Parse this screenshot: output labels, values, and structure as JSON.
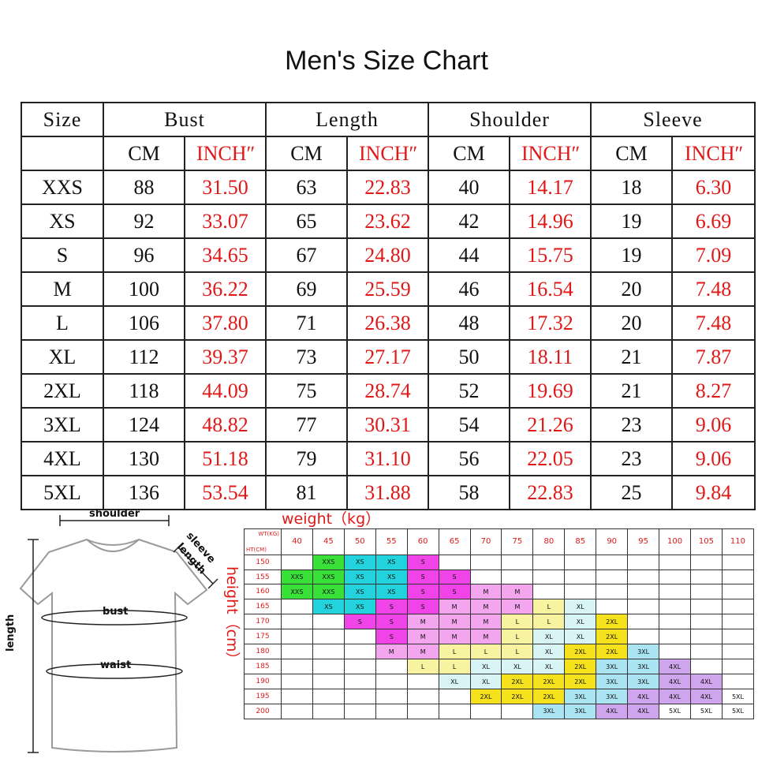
{
  "title": "Men's Size Chart",
  "table": {
    "size_header": "Size",
    "groups": [
      "Bust",
      "Length",
      "Shoulder",
      "Sleeve"
    ],
    "unit_cm": "CM",
    "unit_inch": "INCHʺ",
    "rows": [
      {
        "size": "XXS",
        "vals": [
          "88",
          "31.50",
          "63",
          "22.83",
          "40",
          "14.17",
          "18",
          "6.30"
        ]
      },
      {
        "size": "XS",
        "vals": [
          "92",
          "33.07",
          "65",
          "23.62",
          "42",
          "14.96",
          "19",
          "6.69"
        ]
      },
      {
        "size": "S",
        "vals": [
          "96",
          "34.65",
          "67",
          "24.80",
          "44",
          "15.75",
          "19",
          "7.09"
        ]
      },
      {
        "size": "M",
        "vals": [
          "100",
          "36.22",
          "69",
          "25.59",
          "46",
          "16.54",
          "20",
          "7.48"
        ]
      },
      {
        "size": "L",
        "vals": [
          "106",
          "37.80",
          "71",
          "26.38",
          "48",
          "17.32",
          "20",
          "7.48"
        ]
      },
      {
        "size": "XL",
        "vals": [
          "112",
          "39.37",
          "73",
          "27.17",
          "50",
          "18.11",
          "21",
          "7.87"
        ]
      },
      {
        "size": "2XL",
        "vals": [
          "118",
          "44.09",
          "75",
          "28.74",
          "52",
          "19.69",
          "21",
          "8.27"
        ]
      },
      {
        "size": "3XL",
        "vals": [
          "124",
          "48.82",
          "77",
          "30.31",
          "54",
          "21.26",
          "23",
          "9.06"
        ]
      },
      {
        "size": "4XL",
        "vals": [
          "130",
          "51.18",
          "79",
          "31.10",
          "56",
          "22.05",
          "23",
          "9.06"
        ]
      },
      {
        "size": "5XL",
        "vals": [
          "136",
          "53.54",
          "81",
          "31.88",
          "58",
          "22.83",
          "25",
          "9.84"
        ]
      }
    ]
  },
  "diagram": {
    "shoulder": "shoulder",
    "sleeve": "sleeve",
    "sleeve_length": "length",
    "length": "length",
    "bust": "bust",
    "waist": "waist"
  },
  "grid": {
    "weight_label": "weight（kg）",
    "height_label": "height（cm）",
    "corner_wt": "WT(KG)",
    "corner_ht": "HT(CM)",
    "weights": [
      "40",
      "45",
      "50",
      "55",
      "60",
      "65",
      "70",
      "75",
      "80",
      "85",
      "90",
      "95",
      "100",
      "105",
      "110"
    ],
    "colors": {
      "XXS": "#38e038",
      "XS": "#22d3de",
      "S": "#f044e8",
      "M": "#f3a6ee",
      "L": "#f7f3a0",
      "XL": "#d8f4f4",
      "2XL": "#f5e11c",
      "3XL": "#aae3f2",
      "4XL": "#cfa5ee",
      "5XL": "#ffffff"
    },
    "rows": [
      {
        "height": "150",
        "cells": [
          "",
          "XXS",
          "XS",
          "XS",
          "S",
          "",
          "",
          "",
          "",
          "",
          "",
          "",
          "",
          "",
          ""
        ]
      },
      {
        "height": "155",
        "cells": [
          "XXS",
          "XXS",
          "XS",
          "XS",
          "S",
          "S",
          "",
          "",
          "",
          "",
          "",
          "",
          "",
          "",
          ""
        ]
      },
      {
        "height": "160",
        "cells": [
          "XXS",
          "XXS",
          "XS",
          "XS",
          "S",
          "S",
          "M",
          "M",
          "",
          "",
          "",
          "",
          "",
          "",
          ""
        ]
      },
      {
        "height": "165",
        "cells": [
          "",
          "XS",
          "XS",
          "S",
          "S",
          "M",
          "M",
          "M",
          "L",
          "XL",
          "",
          "",
          "",
          "",
          ""
        ]
      },
      {
        "height": "170",
        "cells": [
          "",
          "",
          "S",
          "S",
          "M",
          "M",
          "M",
          "L",
          "L",
          "XL",
          "2XL",
          "",
          "",
          "",
          ""
        ]
      },
      {
        "height": "175",
        "cells": [
          "",
          "",
          "",
          "S",
          "M",
          "M",
          "M",
          "L",
          "XL",
          "XL",
          "2XL",
          "",
          "",
          "",
          ""
        ]
      },
      {
        "height": "180",
        "cells": [
          "",
          "",
          "",
          "M",
          "M",
          "L",
          "L",
          "L",
          "XL",
          "2XL",
          "2XL",
          "3XL",
          "",
          "",
          ""
        ]
      },
      {
        "height": "185",
        "cells": [
          "",
          "",
          "",
          "",
          "L",
          "L",
          "XL",
          "XL",
          "XL",
          "2XL",
          "3XL",
          "3XL",
          "4XL",
          "",
          ""
        ]
      },
      {
        "height": "190",
        "cells": [
          "",
          "",
          "",
          "",
          "",
          "XL",
          "XL",
          "2XL",
          "2XL",
          "2XL",
          "3XL",
          "3XL",
          "4XL",
          "4XL",
          ""
        ]
      },
      {
        "height": "195",
        "cells": [
          "",
          "",
          "",
          "",
          "",
          "",
          "2XL",
          "2XL",
          "2XL",
          "3XL",
          "3XL",
          "4XL",
          "4XL",
          "4XL",
          "5XL"
        ]
      },
      {
        "height": "200",
        "cells": [
          "",
          "",
          "",
          "",
          "",
          "",
          "",
          "",
          "3XL",
          "3XL",
          "4XL",
          "4XL",
          "5XL",
          "5XL",
          "5XL"
        ]
      }
    ]
  }
}
